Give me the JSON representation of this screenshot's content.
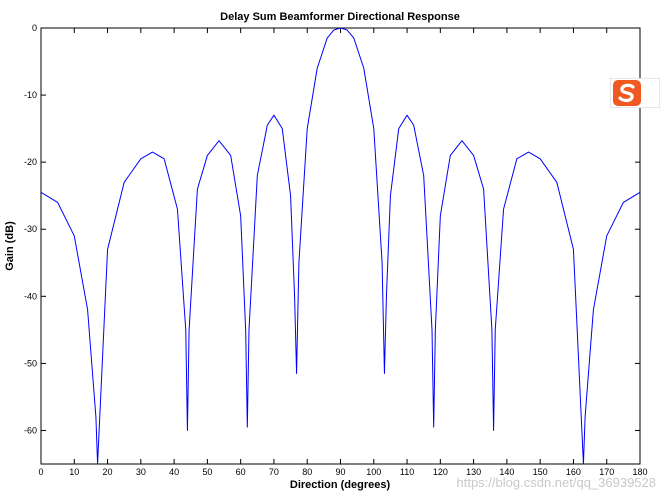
{
  "chart_data": {
    "type": "line",
    "title": "Delay Sum Beamformer Directional Response",
    "xlabel": "Direction (degrees)",
    "ylabel": "Gain (dB)",
    "xlim": [
      0,
      180
    ],
    "ylim": [
      -65,
      0
    ],
    "xticks": [
      0,
      10,
      20,
      30,
      40,
      50,
      60,
      70,
      80,
      90,
      100,
      110,
      120,
      130,
      140,
      150,
      160,
      170,
      180
    ],
    "yticks": [
      0,
      -10,
      -20,
      -30,
      -40,
      -50,
      -60
    ],
    "grid": false,
    "legend": "none",
    "line_color": "#0000ff",
    "series": [
      {
        "x": [
          0,
          5,
          10,
          14,
          16.5,
          17,
          20,
          25,
          30,
          33.5,
          37,
          41,
          43.5,
          44,
          44.5,
          47,
          50,
          53.5,
          57,
          60,
          61.5,
          62,
          62.5,
          65,
          68,
          70,
          72.5,
          75,
          76.2,
          76.8,
          77.5,
          80,
          83,
          86,
          88,
          90,
          92,
          94,
          97,
          100,
          102.5,
          103.2,
          103.8,
          105,
          107.5,
          110,
          112,
          115,
          117.5,
          118,
          118.5,
          120,
          123,
          126.5,
          130,
          133,
          135.5,
          136,
          136.5,
          139,
          143,
          146.5,
          150,
          155,
          160,
          163,
          163.5,
          166,
          170,
          175,
          180
        ],
        "y": [
          -24.5,
          -26,
          -31,
          -42,
          -58,
          -65,
          -33,
          -23,
          -19.5,
          -18.5,
          -19.5,
          -27,
          -45,
          -60,
          -45,
          -24,
          -19,
          -16.8,
          -19,
          -28,
          -45,
          -59.5,
          -45,
          -22,
          -14.5,
          -13,
          -15,
          -25,
          -40,
          -51.5,
          -35,
          -15,
          -6,
          -1.5,
          -0.3,
          0,
          -0.3,
          -1.5,
          -6,
          -15,
          -35,
          -51.5,
          -40,
          -25,
          -15,
          -13,
          -14.5,
          -22,
          -45,
          -59.5,
          -45,
          -28,
          -19,
          -16.8,
          -19,
          -24,
          -45,
          -60,
          -45,
          -27,
          -19.5,
          -18.5,
          -19.5,
          -23,
          -33,
          -65,
          -58,
          -42,
          -31,
          -26,
          -24.5
        ]
      }
    ]
  },
  "overlay": {
    "watermark": "https://blog.csdn.net/qq_36939528",
    "ime_icon": "sogou-ime-icon",
    "ime_color": "#f05a22"
  }
}
